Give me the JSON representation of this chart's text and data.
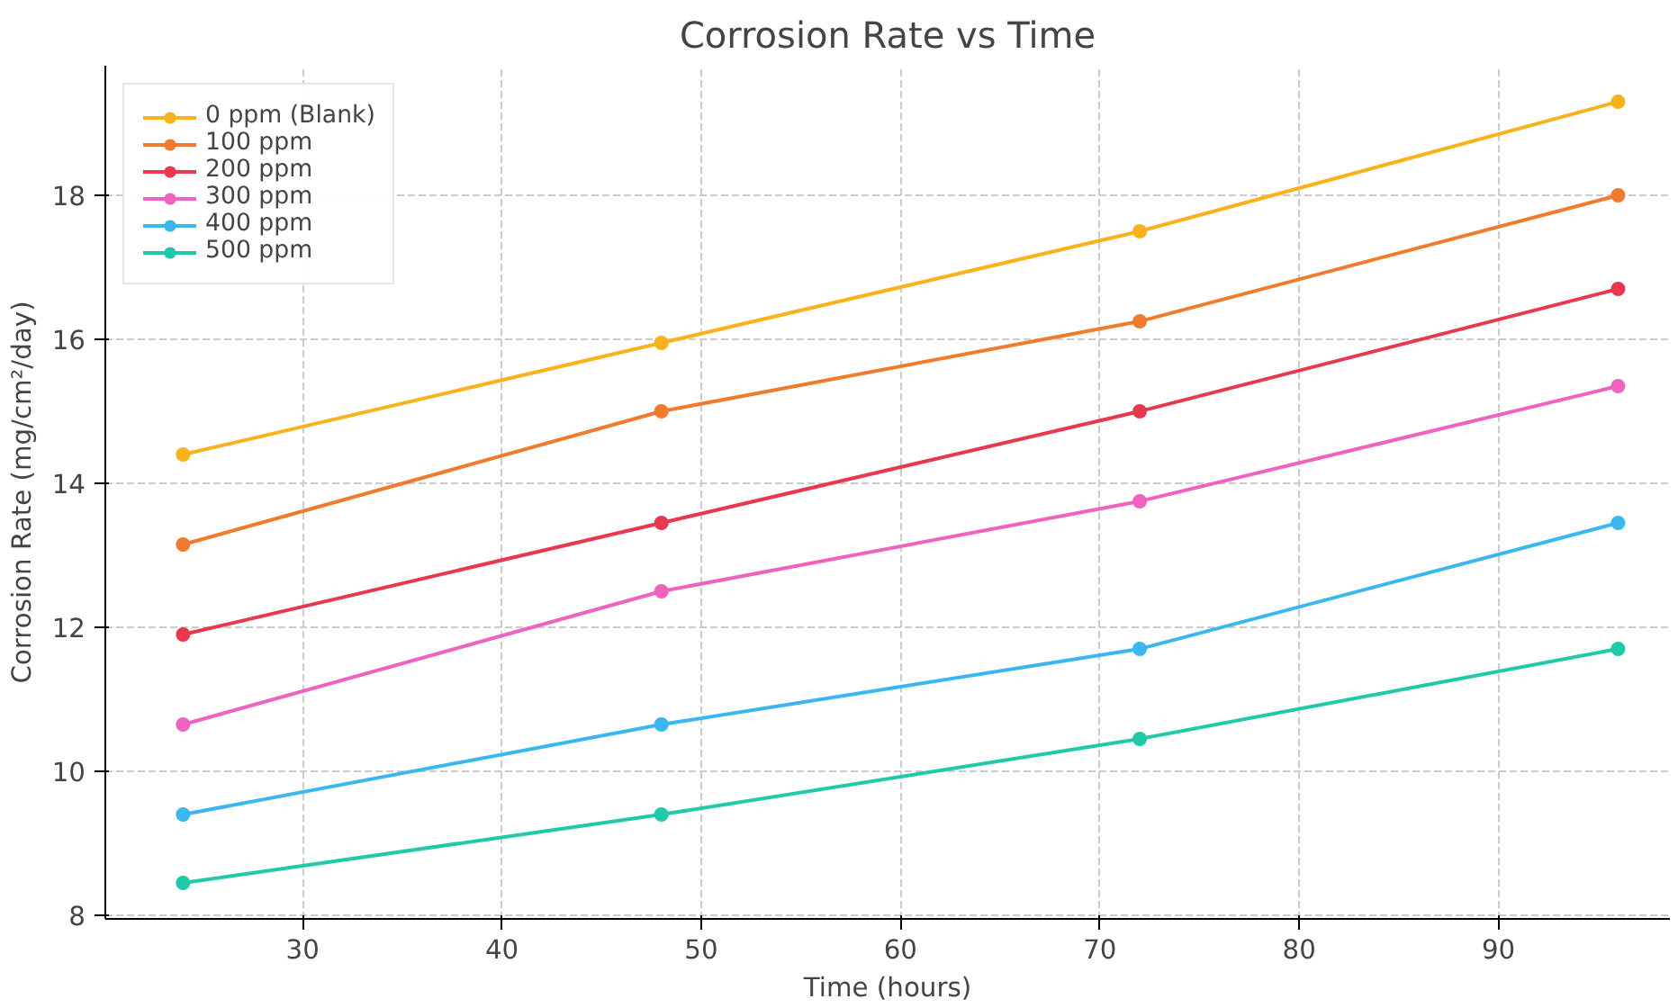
{
  "chart_data": {
    "type": "line",
    "title": "Corrosion Rate vs Time",
    "xlabel": "Time (hours)",
    "ylabel": "Corrosion Rate (mg/cm²/day)",
    "x": [
      24,
      48,
      72,
      96
    ],
    "series": [
      {
        "name": "0 ppm (Blank)",
        "color": "#f9b21b",
        "values": [
          14.4,
          15.95,
          17.5,
          19.3
        ]
      },
      {
        "name": "100 ppm",
        "color": "#f07b2c",
        "values": [
          13.15,
          15.0,
          16.25,
          18.0
        ]
      },
      {
        "name": "200 ppm",
        "color": "#e8384f",
        "values": [
          11.9,
          13.45,
          15.0,
          16.7
        ]
      },
      {
        "name": "300 ppm",
        "color": "#f062c0",
        "values": [
          10.65,
          12.5,
          13.75,
          15.35
        ]
      },
      {
        "name": "400 ppm",
        "color": "#3bb7f0",
        "values": [
          9.4,
          10.65,
          11.7,
          13.45
        ]
      },
      {
        "name": "500 ppm",
        "color": "#1fc9aa",
        "values": [
          8.45,
          9.4,
          10.45,
          11.7
        ]
      }
    ],
    "xlim": [
      20.1,
      98.6
    ],
    "ylim": [
      7.95,
      19.8
    ],
    "xticks": [
      30,
      40,
      50,
      60,
      70,
      80,
      90
    ],
    "yticks": [
      8,
      10,
      12,
      14,
      16,
      18
    ],
    "grid": true,
    "legend": "top left",
    "marker": "circle",
    "line_style": "solid"
  }
}
